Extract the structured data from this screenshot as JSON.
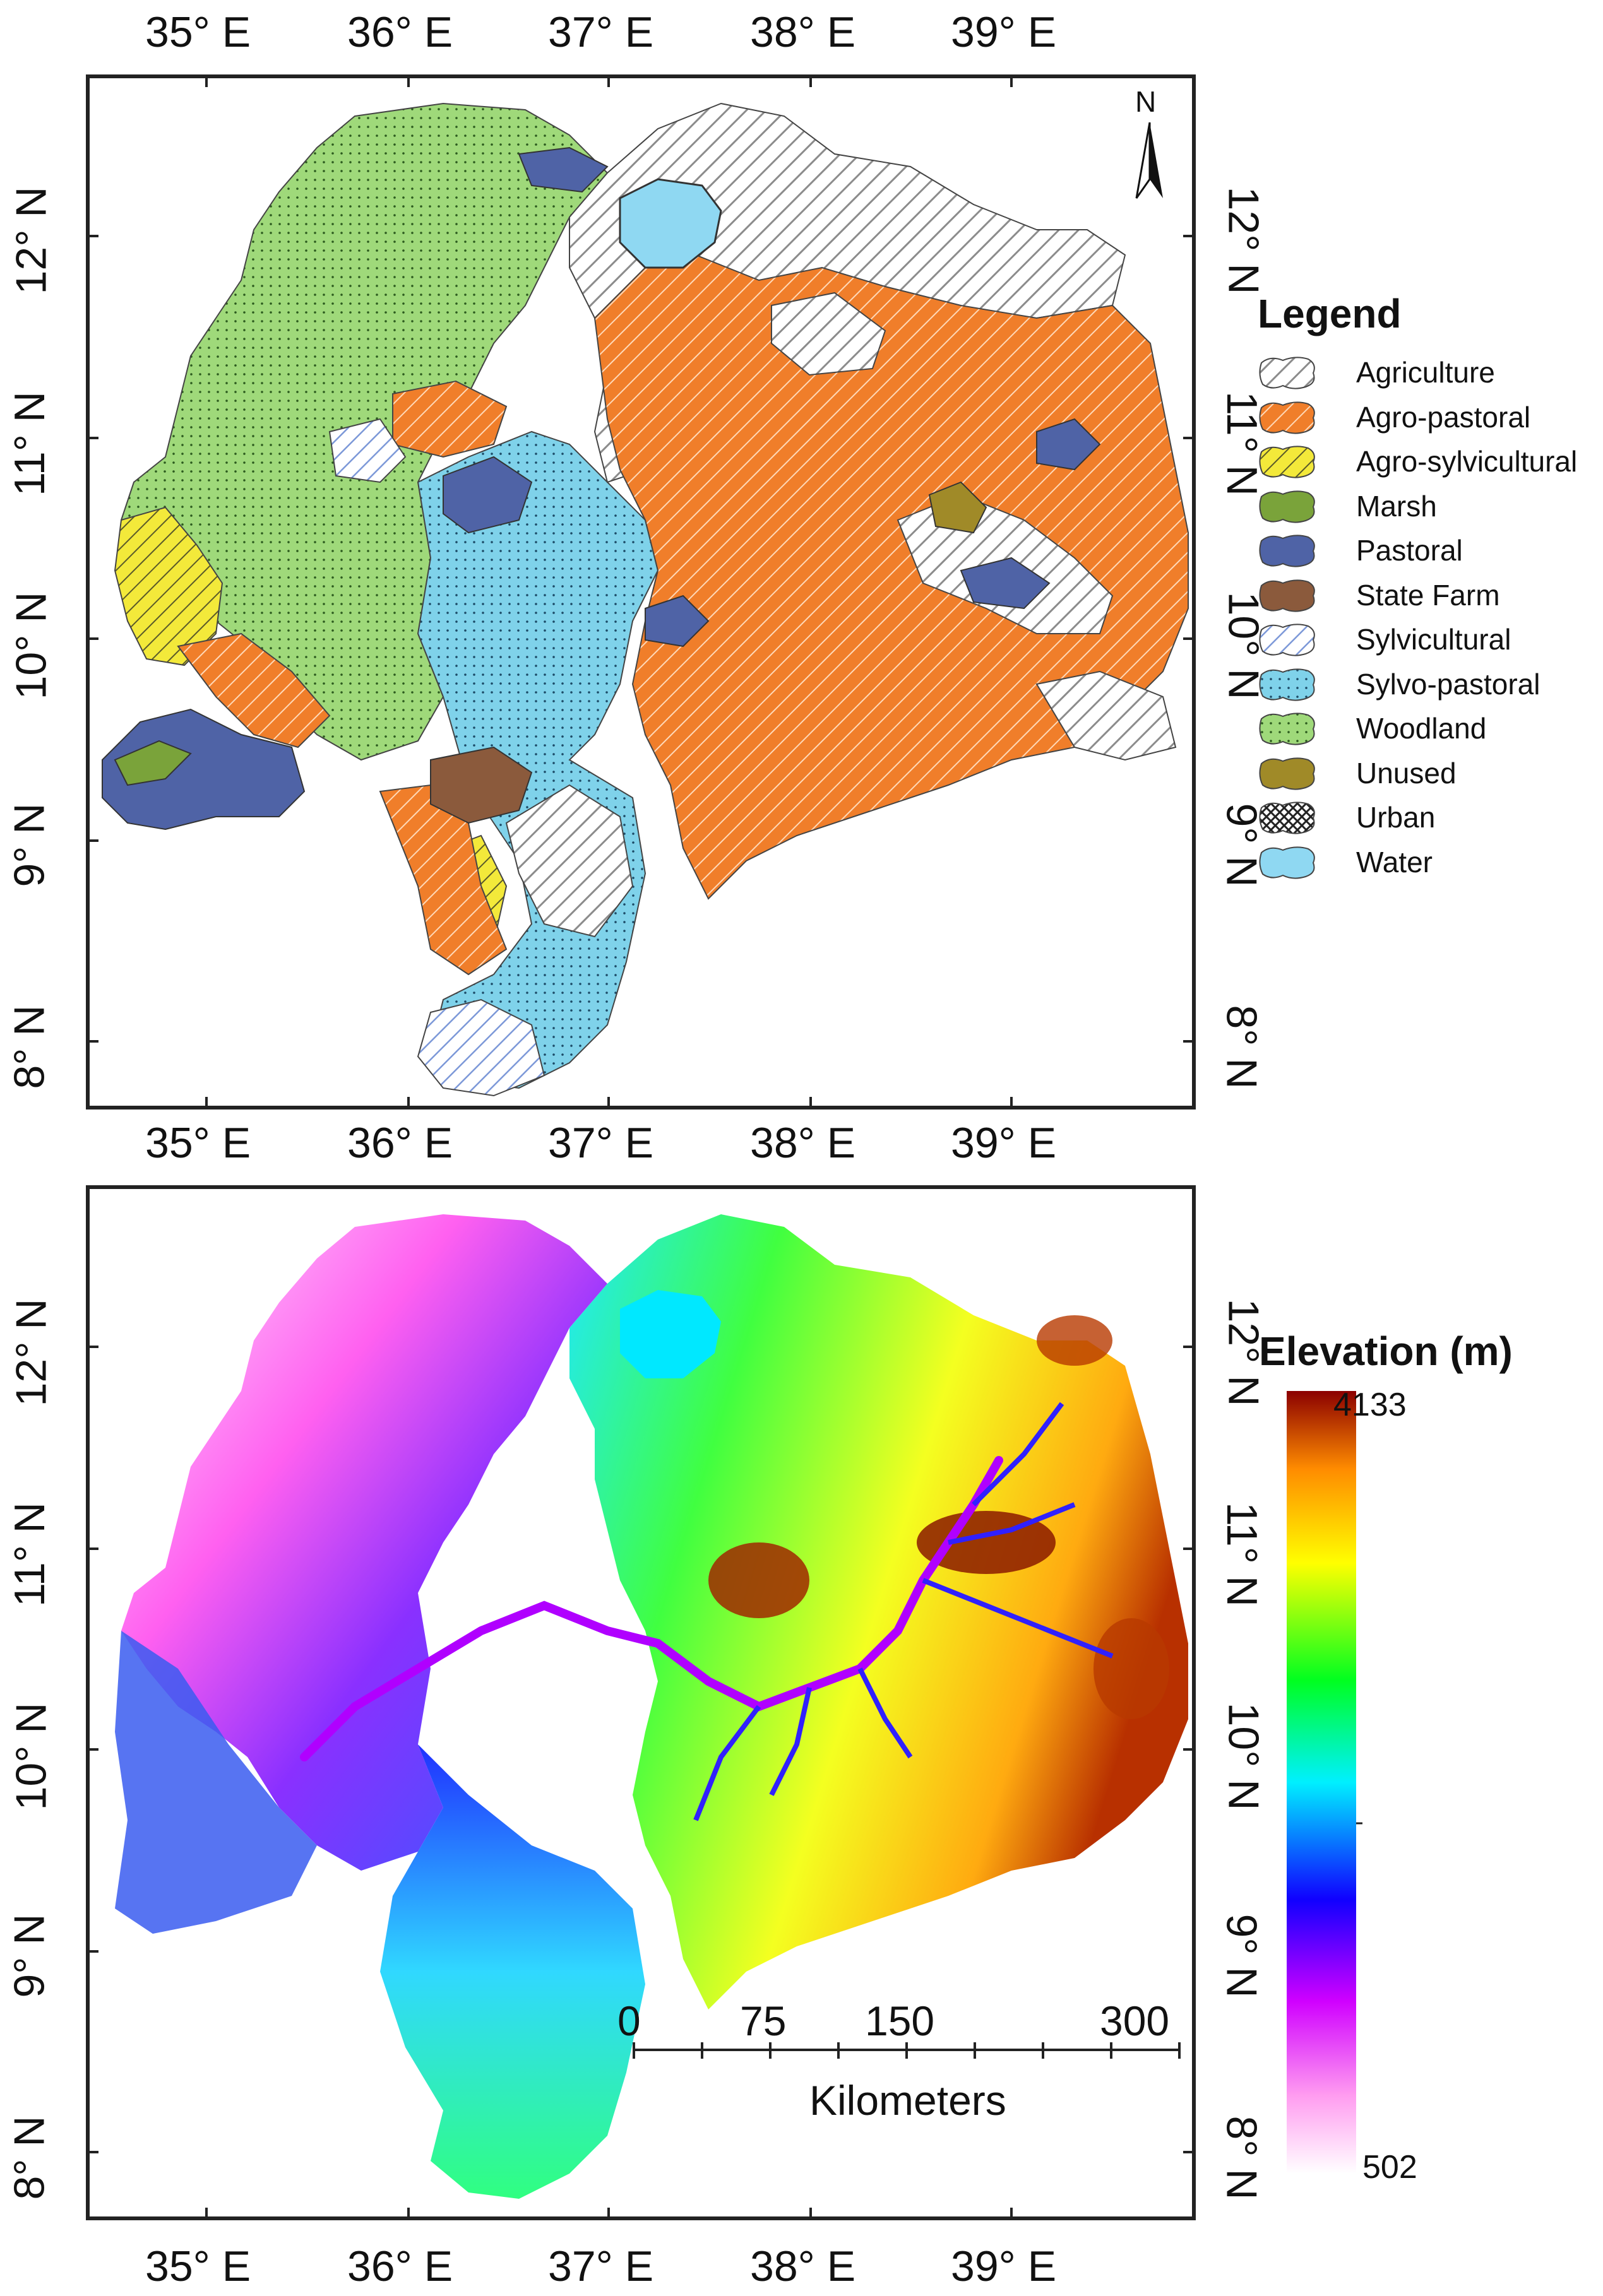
{
  "top_map": {
    "lon_labels": [
      "35° E",
      "36° E",
      "37° E",
      "38° E",
      "39° E"
    ],
    "lat_labels": [
      "8° N",
      "9° N",
      "10° N",
      "11° N",
      "12° N"
    ],
    "north_label": "N",
    "legend": {
      "title": "Legend",
      "items": [
        {
          "label": "Agriculture",
          "color": "#ffffff",
          "pattern": "hatch-grey"
        },
        {
          "label": "Agro-pastoral",
          "color": "#f07e2a",
          "pattern": "hatch-white"
        },
        {
          "label": "Agro-sylvicultural",
          "color": "#f3e93a",
          "pattern": "hatch-dark"
        },
        {
          "label": "Marsh",
          "color": "#7aa33a",
          "pattern": "solid"
        },
        {
          "label": "Pastoral",
          "color": "#4f63a6",
          "pattern": "solid"
        },
        {
          "label": "State Farm",
          "color": "#8b5a3c",
          "pattern": "solid"
        },
        {
          "label": "Sylvicultural",
          "color": "#ffffff",
          "pattern": "hatch-blue"
        },
        {
          "label": "Sylvo-pastoral",
          "color": "#7fd2ea",
          "pattern": "dots"
        },
        {
          "label": "Woodland",
          "color": "#9fd97a",
          "pattern": "dots"
        },
        {
          "label": "Unused",
          "color": "#a08a28",
          "pattern": "solid"
        },
        {
          "label": "Urban",
          "color": "#ffffff",
          "pattern": "cross"
        },
        {
          "label": "Water",
          "color": "#8fd8f2",
          "pattern": "solid"
        }
      ]
    }
  },
  "bottom_map": {
    "lon_labels": [
      "35° E",
      "36° E",
      "37° E",
      "38° E",
      "39° E"
    ],
    "lat_labels": [
      "8° N",
      "9° N",
      "10° N",
      "11° N",
      "12° N"
    ],
    "elevation_title": "Elevation (m)",
    "elevation_max": "4133",
    "elevation_min": "502",
    "scale_bar": {
      "ticks": [
        "0",
        "75",
        "150",
        "300"
      ],
      "unit": "Kilometers"
    }
  }
}
